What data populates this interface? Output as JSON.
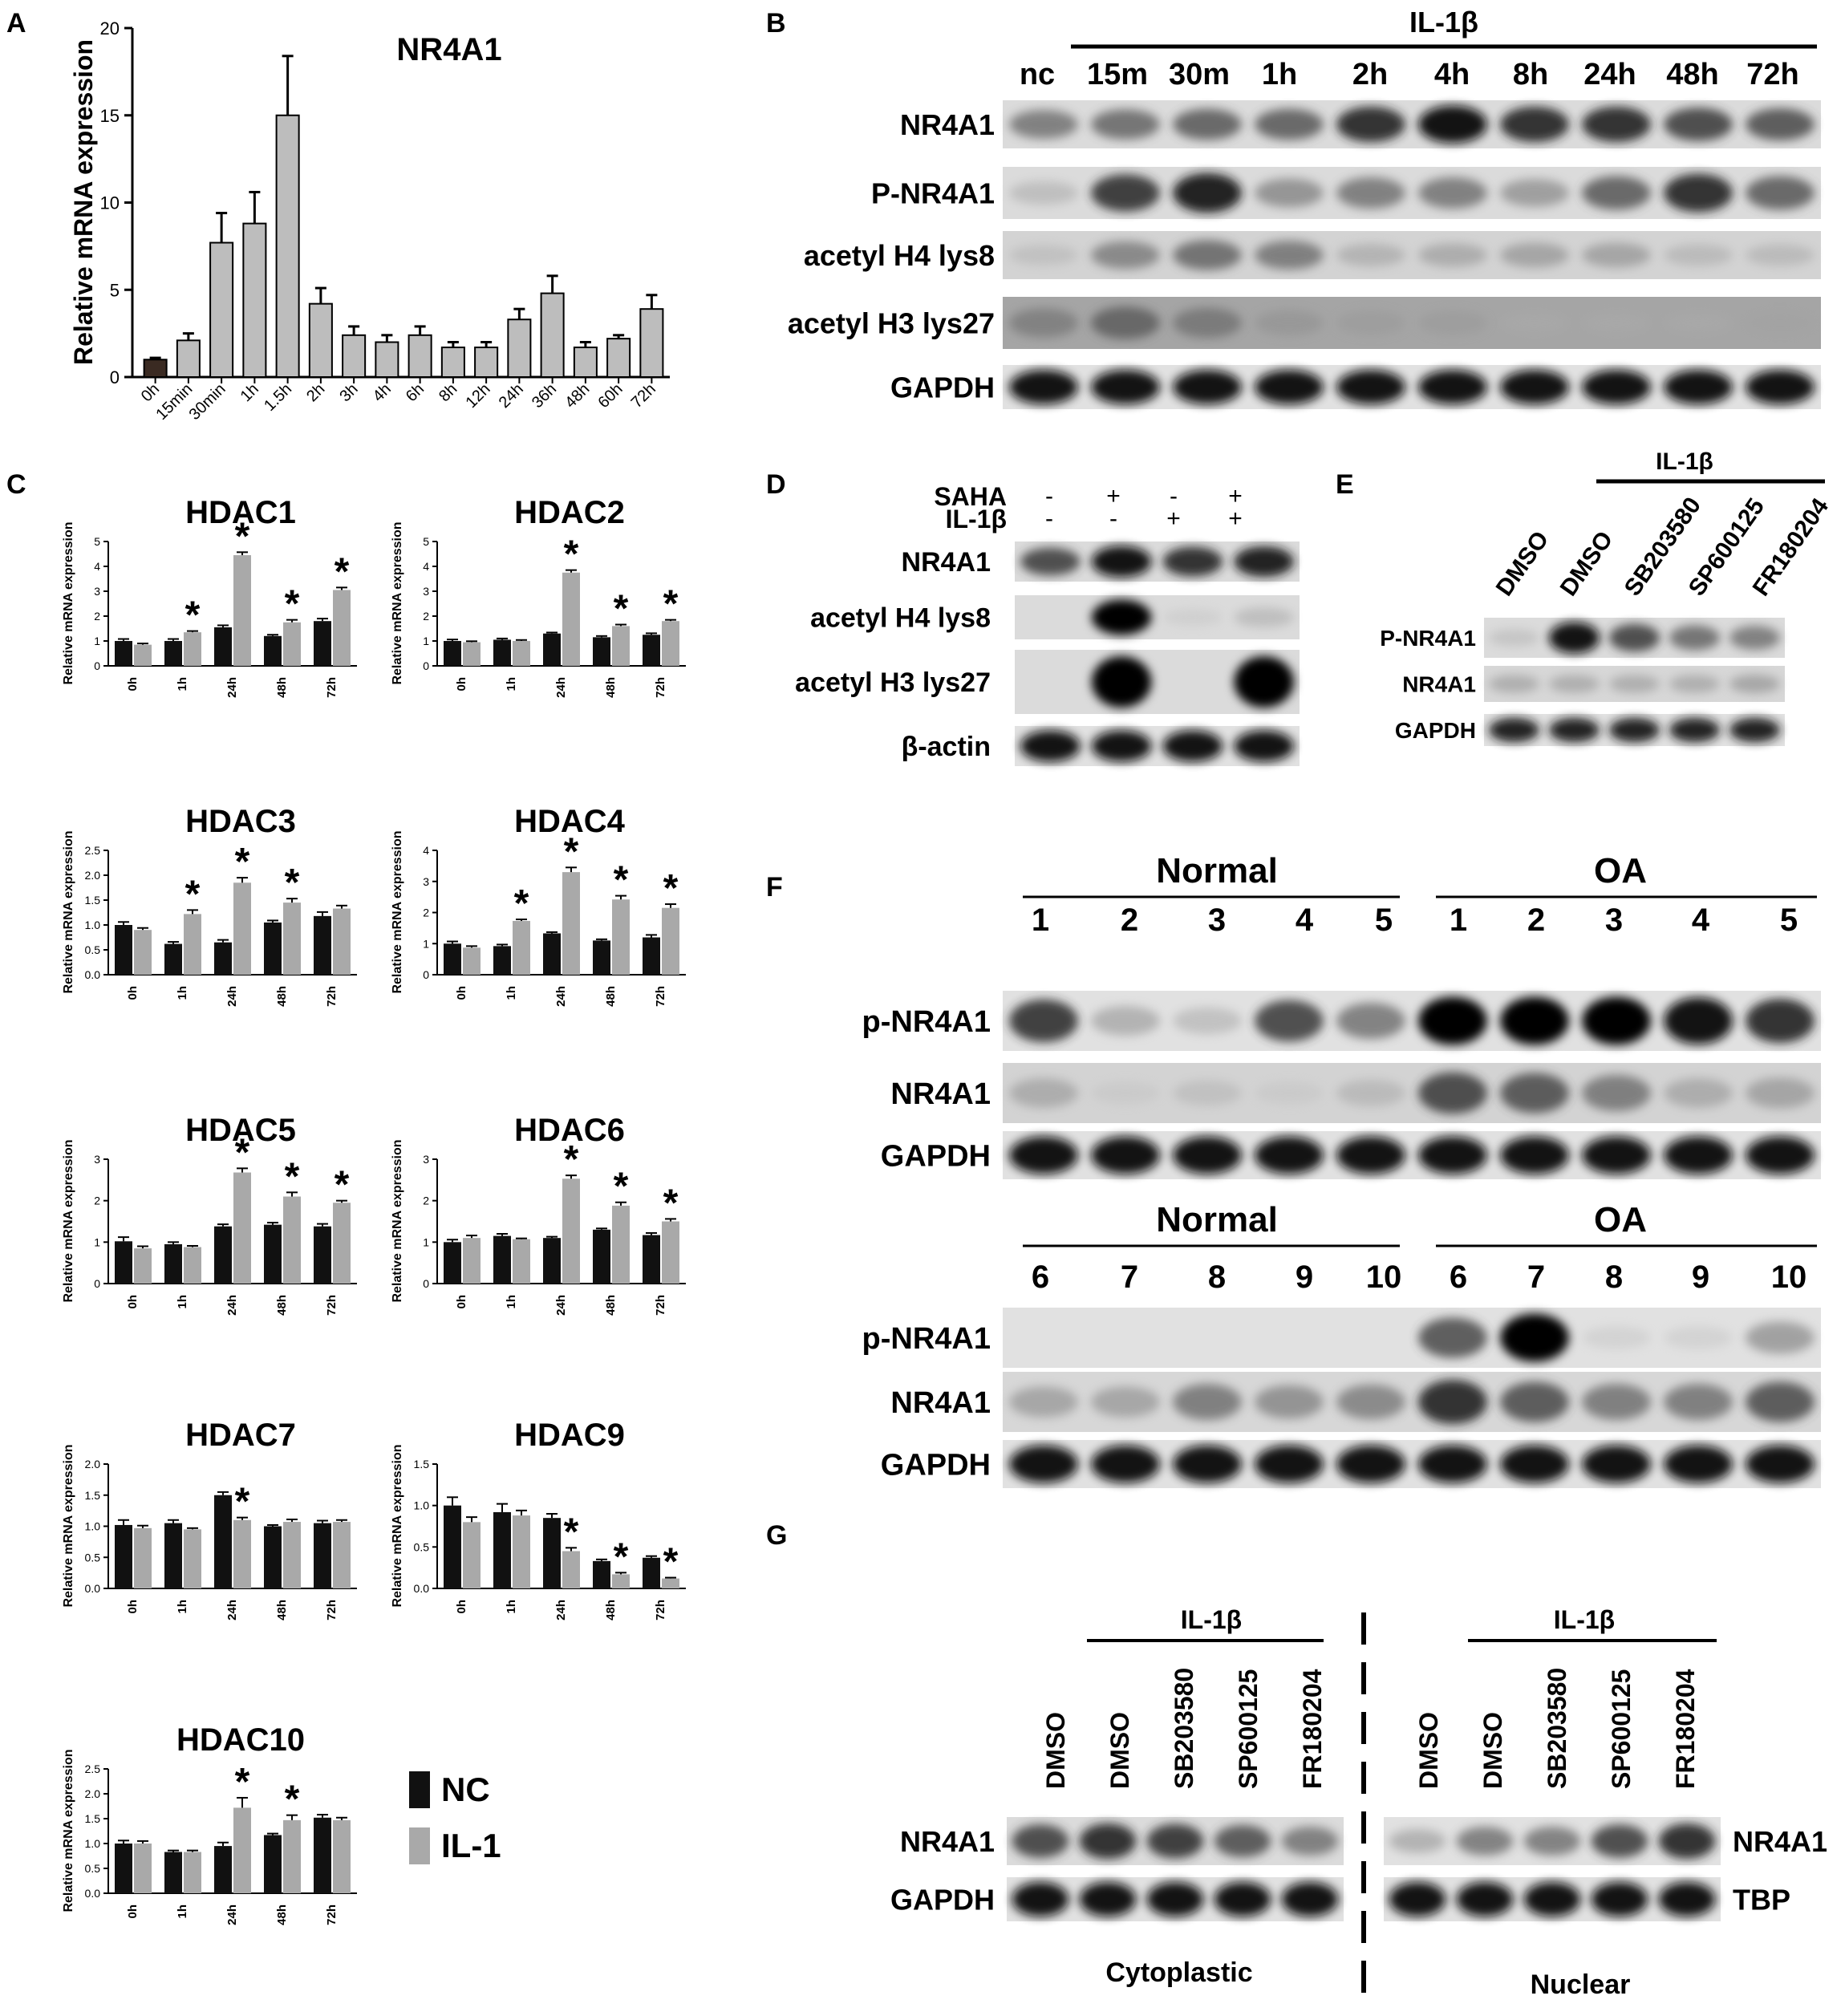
{
  "panel_labels": {
    "A": "A",
    "B": "B",
    "C": "C",
    "D": "D",
    "E": "E",
    "F": "F",
    "G": "G"
  },
  "colors": {
    "nc_bar": "#111111",
    "il1_bar": "#a9a9a9",
    "panelA_first_bar": "#3a2a22",
    "panelA_bar": "#bdbdbd",
    "blot_background": "#e6e6e6"
  },
  "panelA": {
    "title": "NR4A1",
    "ylabel": "Relative mRNA expression",
    "ylim": [
      0,
      20
    ],
    "yticks": [
      "0",
      "5",
      "10",
      "15",
      "20"
    ]
  },
  "chart_data": [
    {
      "type": "bar",
      "title": "NR4A1",
      "ylabel": "Relative mRNA expression",
      "ylim": [
        0,
        20
      ],
      "categories": [
        "0h",
        "15min",
        "30min",
        "1h",
        "1.5h",
        "2h",
        "3h",
        "4h",
        "6h",
        "8h",
        "12h",
        "24h",
        "36h",
        "48h",
        "60h",
        "72h"
      ],
      "values": [
        1.0,
        2.1,
        7.7,
        8.8,
        15.0,
        4.2,
        2.4,
        2.0,
        2.4,
        1.7,
        1.7,
        3.3,
        4.8,
        1.7,
        2.2,
        3.9
      ],
      "errors": [
        0.1,
        0.4,
        1.7,
        1.8,
        3.4,
        0.9,
        0.5,
        0.4,
        0.5,
        0.3,
        0.3,
        0.6,
        1.0,
        0.3,
        0.2,
        0.8
      ]
    },
    {
      "type": "bar",
      "title": "HDAC1",
      "ylabel": "Relative mRNA expression",
      "ylim": [
        0,
        5
      ],
      "yticks": [
        "0",
        "1",
        "2",
        "3",
        "4",
        "5"
      ],
      "categories": [
        "0h",
        "1h",
        "24h",
        "48h",
        "72h"
      ],
      "series": [
        {
          "name": "NC",
          "values": [
            1.0,
            1.0,
            1.55,
            1.2,
            1.8
          ],
          "errors": [
            0.08,
            0.08,
            0.08,
            0.05,
            0.1
          ]
        },
        {
          "name": "IL-1",
          "values": [
            0.85,
            1.35,
            4.45,
            1.75,
            3.05
          ],
          "errors": [
            0.05,
            0.05,
            0.12,
            0.1,
            0.1
          ]
        }
      ],
      "significant": [
        false,
        true,
        true,
        true,
        true
      ]
    },
    {
      "type": "bar",
      "title": "HDAC2",
      "ylabel": "Relative mRNA expression",
      "ylim": [
        0,
        5
      ],
      "yticks": [
        "0",
        "1",
        "2",
        "3",
        "4",
        "5"
      ],
      "categories": [
        "0h",
        "1h",
        "24h",
        "48h",
        "72h"
      ],
      "series": [
        {
          "name": "NC",
          "values": [
            1.0,
            1.05,
            1.3,
            1.15,
            1.25
          ],
          "errors": [
            0.06,
            0.05,
            0.04,
            0.05,
            0.06
          ]
        },
        {
          "name": "IL-1",
          "values": [
            0.95,
            1.0,
            3.75,
            1.6,
            1.8
          ],
          "errors": [
            0.04,
            0.04,
            0.1,
            0.06,
            0.05
          ]
        }
      ],
      "significant": [
        false,
        false,
        true,
        true,
        true
      ]
    },
    {
      "type": "bar",
      "title": "HDAC3",
      "ylabel": "Relative mRNA expression",
      "ylim": [
        0,
        2.5
      ],
      "yticks": [
        "0.0",
        "0.5",
        "1.0",
        "1.5",
        "2.0",
        "2.5"
      ],
      "categories": [
        "0h",
        "1h",
        "24h",
        "48h",
        "72h"
      ],
      "series": [
        {
          "name": "NC",
          "values": [
            1.0,
            0.62,
            0.65,
            1.05,
            1.18
          ],
          "errors": [
            0.06,
            0.04,
            0.05,
            0.04,
            0.08
          ]
        },
        {
          "name": "IL-1",
          "values": [
            0.9,
            1.22,
            1.85,
            1.45,
            1.33
          ],
          "errors": [
            0.04,
            0.08,
            0.1,
            0.08,
            0.06
          ]
        }
      ],
      "significant": [
        false,
        true,
        true,
        true,
        false
      ]
    },
    {
      "type": "bar",
      "title": "HDAC4",
      "ylabel": "Relative mRNA expression",
      "ylim": [
        0,
        4
      ],
      "yticks": [
        "0",
        "1",
        "2",
        "3",
        "4"
      ],
      "categories": [
        "0h",
        "1h",
        "24h",
        "48h",
        "72h"
      ],
      "series": [
        {
          "name": "NC",
          "values": [
            1.0,
            0.92,
            1.33,
            1.1,
            1.2
          ],
          "errors": [
            0.07,
            0.05,
            0.04,
            0.04,
            0.08
          ]
        },
        {
          "name": "IL-1",
          "values": [
            0.87,
            1.73,
            3.3,
            2.42,
            2.15
          ],
          "errors": [
            0.05,
            0.05,
            0.15,
            0.12,
            0.12
          ]
        }
      ],
      "significant": [
        false,
        true,
        true,
        true,
        true
      ]
    },
    {
      "type": "bar",
      "title": "HDAC5",
      "ylabel": "Relative mRNA expression",
      "ylim": [
        0,
        3
      ],
      "yticks": [
        "0",
        "1",
        "2",
        "3"
      ],
      "categories": [
        "0h",
        "1h",
        "24h",
        "48h",
        "72h"
      ],
      "series": [
        {
          "name": "NC",
          "values": [
            1.02,
            0.95,
            1.38,
            1.42,
            1.38
          ],
          "errors": [
            0.1,
            0.05,
            0.05,
            0.05,
            0.06
          ]
        },
        {
          "name": "IL-1",
          "values": [
            0.85,
            0.88,
            2.68,
            2.1,
            1.95
          ],
          "errors": [
            0.05,
            0.03,
            0.1,
            0.1,
            0.05
          ]
        }
      ],
      "significant": [
        false,
        false,
        true,
        true,
        true
      ]
    },
    {
      "type": "bar",
      "title": "HDAC6",
      "ylabel": "Relative mRNA expression",
      "ylim": [
        0,
        3
      ],
      "yticks": [
        "0",
        "1",
        "2",
        "3"
      ],
      "categories": [
        "0h",
        "1h",
        "24h",
        "48h",
        "72h"
      ],
      "series": [
        {
          "name": "NC",
          "values": [
            1.0,
            1.15,
            1.1,
            1.3,
            1.17
          ],
          "errors": [
            0.06,
            0.05,
            0.03,
            0.03,
            0.05
          ]
        },
        {
          "name": "IL-1",
          "values": [
            1.1,
            1.07,
            2.53,
            1.88,
            1.5
          ],
          "errors": [
            0.06,
            0.02,
            0.08,
            0.08,
            0.06
          ]
        }
      ],
      "significant": [
        false,
        false,
        true,
        true,
        true
      ]
    },
    {
      "type": "bar",
      "title": "HDAC7",
      "ylabel": "Relative mRNA expression",
      "ylim": [
        0,
        2.0
      ],
      "yticks": [
        "0.0",
        "0.5",
        "1.0",
        "1.5",
        "2.0"
      ],
      "categories": [
        "0h",
        "1h",
        "24h",
        "48h",
        "72h"
      ],
      "series": [
        {
          "name": "NC",
          "values": [
            1.02,
            1.05,
            1.5,
            1.0,
            1.05
          ],
          "errors": [
            0.08,
            0.05,
            0.05,
            0.02,
            0.04
          ]
        },
        {
          "name": "IL-1",
          "values": [
            0.97,
            0.95,
            1.1,
            1.07,
            1.07
          ],
          "errors": [
            0.04,
            0.02,
            0.04,
            0.04,
            0.03
          ]
        }
      ],
      "significant": [
        false,
        false,
        true,
        false,
        false
      ]
    },
    {
      "type": "bar",
      "title": "HDAC9",
      "ylabel": "Relative mRNA expression",
      "ylim": [
        0,
        1.5
      ],
      "yticks": [
        "0.0",
        "0.5",
        "1.0",
        "1.5"
      ],
      "categories": [
        "0h",
        "1h",
        "24h",
        "48h",
        "72h"
      ],
      "series": [
        {
          "name": "NC",
          "values": [
            1.0,
            0.92,
            0.85,
            0.33,
            0.37
          ],
          "errors": [
            0.1,
            0.1,
            0.05,
            0.02,
            0.02
          ]
        },
        {
          "name": "IL-1",
          "values": [
            0.8,
            0.88,
            0.45,
            0.17,
            0.12
          ],
          "errors": [
            0.06,
            0.06,
            0.04,
            0.02,
            0.01
          ]
        }
      ],
      "significant": [
        false,
        false,
        true,
        true,
        true
      ]
    },
    {
      "type": "bar",
      "title": "HDAC10",
      "ylabel": "Relative mRNA expression",
      "ylim": [
        0,
        2.5
      ],
      "yticks": [
        "0.0",
        "0.5",
        "1.0",
        "1.5",
        "2.0",
        "2.5"
      ],
      "categories": [
        "0h",
        "1h",
        "24h",
        "48h",
        "72h"
      ],
      "series": [
        {
          "name": "NC",
          "values": [
            1.0,
            0.83,
            0.95,
            1.17,
            1.52
          ],
          "errors": [
            0.06,
            0.03,
            0.07,
            0.03,
            0.06
          ]
        },
        {
          "name": "IL-1",
          "values": [
            1.0,
            0.83,
            1.72,
            1.47,
            1.47
          ],
          "errors": [
            0.05,
            0.03,
            0.2,
            0.1,
            0.05
          ]
        }
      ],
      "significant": [
        false,
        false,
        true,
        true,
        false
      ]
    }
  ],
  "legend": {
    "nc": "NC",
    "il1": "IL-1"
  },
  "star": "*",
  "panelB": {
    "treatment": "IL-1β",
    "lanes": [
      "nc",
      "15m",
      "30m",
      "1h",
      "2h",
      "4h",
      "8h",
      "24h",
      "48h",
      "72h"
    ],
    "rows": [
      {
        "label": "NR4A1",
        "intensity": [
          0.55,
          0.6,
          0.65,
          0.65,
          0.85,
          0.95,
          0.85,
          0.85,
          0.75,
          0.7
        ],
        "bg": 0.08
      },
      {
        "label": "P-NR4A1",
        "intensity": [
          0.2,
          0.8,
          0.9,
          0.45,
          0.55,
          0.55,
          0.4,
          0.65,
          0.85,
          0.65
        ],
        "bg": 0.08
      },
      {
        "label": "acetyl H4 lys8",
        "intensity": [
          0.15,
          0.5,
          0.6,
          0.55,
          0.25,
          0.3,
          0.35,
          0.35,
          0.2,
          0.2
        ],
        "bg": 0.12
      },
      {
        "label": "acetyl H3 lys27",
        "intensity": [
          0.45,
          0.6,
          0.5,
          0.3,
          0.25,
          0.25,
          0.15,
          0.15,
          0.15,
          0.2
        ],
        "bg": 0.35
      },
      {
        "label": "GAPDH",
        "intensity": [
          0.95,
          0.95,
          0.95,
          0.95,
          0.95,
          0.95,
          0.95,
          0.95,
          0.95,
          0.95
        ],
        "bg": 0.05
      }
    ]
  },
  "panelD": {
    "conditions": [
      {
        "label": "SAHA",
        "values": [
          "-",
          "+",
          "-",
          "+"
        ]
      },
      {
        "label": "IL-1β",
        "values": [
          "-",
          "-",
          "+",
          "+"
        ]
      }
    ],
    "rows": [
      {
        "label": "NR4A1",
        "intensity": [
          0.75,
          0.95,
          0.85,
          0.9
        ],
        "bg": 0.08
      },
      {
        "label": "acetyl H4 lys8",
        "intensity": [
          0.0,
          1.0,
          0.05,
          0.2
        ],
        "bg": 0.08
      },
      {
        "label": "acetyl H3 lys27",
        "intensity": [
          0.0,
          1.0,
          0.0,
          1.0
        ],
        "bg": 0.08
      },
      {
        "label": "β-actin",
        "intensity": [
          0.95,
          0.95,
          0.95,
          0.95
        ],
        "bg": 0.05
      }
    ]
  },
  "panelE": {
    "treatment": "IL-1β",
    "lanes": [
      "DMSO",
      "DMSO",
      "SB203580",
      "SP600125",
      "FR180204"
    ],
    "rows": [
      {
        "label": "P-NR4A1",
        "intensity": [
          0.15,
          0.95,
          0.75,
          0.6,
          0.55
        ],
        "bg": 0.08
      },
      {
        "label": "NR4A1",
        "intensity": [
          0.3,
          0.3,
          0.3,
          0.3,
          0.35
        ],
        "bg": 0.1
      },
      {
        "label": "GAPDH",
        "intensity": [
          0.9,
          0.9,
          0.9,
          0.9,
          0.9
        ],
        "bg": 0.05
      }
    ]
  },
  "panelF": {
    "group_normal": "Normal",
    "group_oa": "OA",
    "top": {
      "lanes": [
        "1",
        "2",
        "3",
        "4",
        "5",
        "1",
        "2",
        "3",
        "4",
        "5"
      ],
      "rows": [
        {
          "label": "p-NR4A1",
          "intensity": [
            0.8,
            0.3,
            0.2,
            0.75,
            0.55,
            1.0,
            1.0,
            1.0,
            0.95,
            0.85
          ],
          "bg": 0.05
        },
        {
          "label": "NR4A1",
          "intensity": [
            0.3,
            0.05,
            0.15,
            0.05,
            0.2,
            0.75,
            0.7,
            0.55,
            0.3,
            0.35
          ],
          "bg": 0.12
        },
        {
          "label": "GAPDH",
          "intensity": [
            0.95,
            0.95,
            0.95,
            0.95,
            0.95,
            0.95,
            0.95,
            0.95,
            0.95,
            0.95
          ],
          "bg": 0.05
        }
      ]
    },
    "bottom": {
      "lanes": [
        "6",
        "7",
        "8",
        "9",
        "10",
        "6",
        "7",
        "8",
        "9",
        "10"
      ],
      "rows": [
        {
          "label": "p-NR4A1",
          "intensity": [
            0.0,
            0.0,
            0.0,
            0.0,
            0.0,
            0.7,
            1.0,
            0.05,
            0.05,
            0.4
          ],
          "bg": 0.05
        },
        {
          "label": "NR4A1",
          "intensity": [
            0.35,
            0.35,
            0.55,
            0.45,
            0.5,
            0.85,
            0.7,
            0.55,
            0.55,
            0.7
          ],
          "bg": 0.1
        },
        {
          "label": "GAPDH",
          "intensity": [
            0.95,
            0.95,
            0.95,
            0.95,
            0.95,
            0.95,
            0.95,
            0.95,
            0.95,
            0.95
          ],
          "bg": 0.05
        }
      ]
    }
  },
  "panelG": {
    "treatment": "IL-1β",
    "lanes": [
      "DMSO",
      "DMSO",
      "SB203580",
      "SP600125",
      "FR180204"
    ],
    "cyto": {
      "title": "Cytoplastic",
      "rows": [
        {
          "label": "NR4A1",
          "intensity": [
            0.75,
            0.85,
            0.8,
            0.7,
            0.55
          ],
          "bg": 0.08
        },
        {
          "label": "GAPDH",
          "intensity": [
            0.95,
            0.95,
            0.95,
            0.95,
            0.95
          ],
          "bg": 0.05
        }
      ]
    },
    "nuclear": {
      "title": "Nuclear",
      "rows": [
        {
          "label": "NR4A1",
          "intensity": [
            0.3,
            0.55,
            0.55,
            0.75,
            0.85
          ],
          "bg": 0.05
        },
        {
          "label": "TBP",
          "intensity": [
            0.95,
            0.95,
            0.95,
            0.95,
            0.95
          ],
          "bg": 0.05
        }
      ]
    }
  }
}
